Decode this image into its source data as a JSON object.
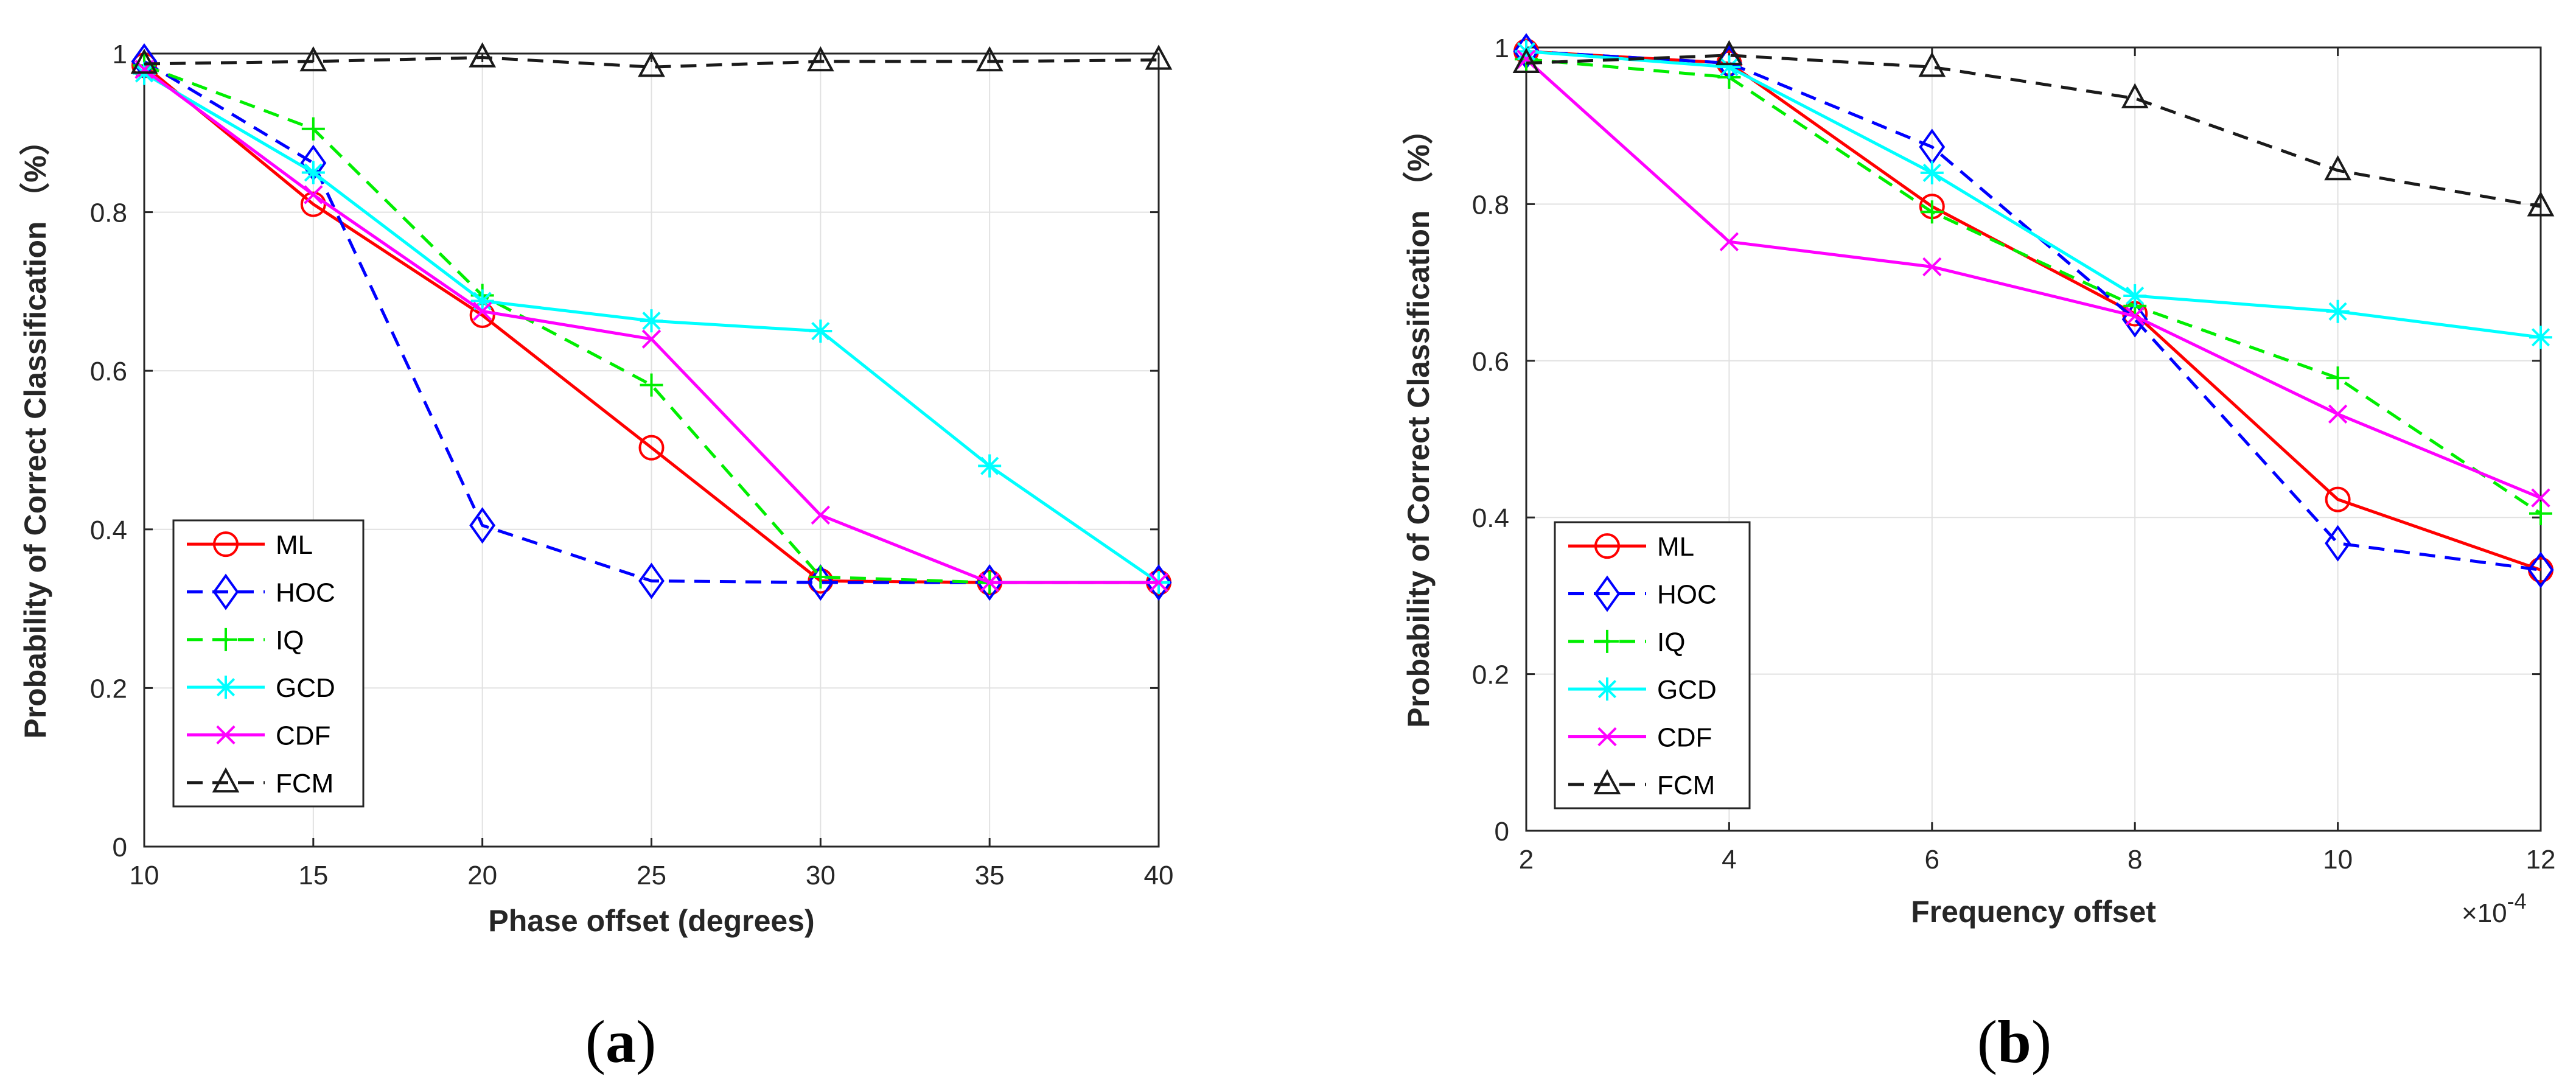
{
  "chart_data": [
    {
      "type": "line",
      "panel": "a",
      "caption": "a",
      "xlabel": "Phase offset (degrees)",
      "ylabel": "Probability of Correct Classification （%）",
      "x": [
        10,
        15,
        20,
        25,
        30,
        35,
        40
      ],
      "xticks": [
        "10",
        "15",
        "20",
        "25",
        "30",
        "35",
        "40"
      ],
      "xlim": [
        10,
        40
      ],
      "ylim": [
        0,
        1
      ],
      "yticks": [
        "0",
        "0.2",
        "0.4",
        "0.6",
        "0.8",
        "1"
      ],
      "grid": true,
      "legend_position": "lower-left",
      "series": [
        {
          "name": "ML",
          "color": "#ff0000",
          "dash": "solid",
          "marker": "circle",
          "values": [
            0.985,
            0.81,
            0.67,
            0.503,
            0.335,
            0.333,
            0.333
          ]
        },
        {
          "name": "HOC",
          "color": "#0000ff",
          "dash": "dashed",
          "marker": "diamond",
          "values": [
            0.99,
            0.862,
            0.405,
            0.335,
            0.333,
            0.333,
            0.333
          ]
        },
        {
          "name": "IQ",
          "color": "#00ee00",
          "dash": "dashed",
          "marker": "plus",
          "values": [
            0.985,
            0.905,
            0.695,
            0.582,
            0.34,
            0.333,
            0.333
          ]
        },
        {
          "name": "GCD",
          "color": "#00ffff",
          "dash": "solid",
          "marker": "asterisk",
          "values": [
            0.975,
            0.85,
            0.688,
            0.663,
            0.65,
            0.48,
            0.333
          ]
        },
        {
          "name": "CDF",
          "color": "#ff00ff",
          "dash": "solid",
          "marker": "cross",
          "values": [
            0.98,
            0.822,
            0.675,
            0.64,
            0.418,
            0.333,
            0.333
          ]
        },
        {
          "name": "FCM",
          "color": "#1a1a1a",
          "dash": "dashed",
          "marker": "triangle",
          "values": [
            0.987,
            0.99,
            0.995,
            0.983,
            0.99,
            0.99,
            0.992
          ]
        }
      ]
    },
    {
      "type": "line",
      "panel": "b",
      "caption": "b",
      "xlabel": "Frequency offset",
      "ylabel": "Probability of Correct Classification （%）",
      "x": [
        2,
        4,
        6,
        8,
        10,
        12
      ],
      "xticks": [
        "2",
        "4",
        "6",
        "8",
        "10",
        "12"
      ],
      "x_multiplier_label": "×10",
      "x_multiplier_exponent": "-4",
      "xlim": [
        2,
        12
      ],
      "ylim": [
        0,
        1
      ],
      "yticks": [
        "0",
        "0.2",
        "0.4",
        "0.6",
        "0.8",
        "1"
      ],
      "grid": true,
      "legend_position": "lower-left",
      "series": [
        {
          "name": "ML",
          "color": "#ff0000",
          "dash": "solid",
          "marker": "circle",
          "values": [
            0.995,
            0.98,
            0.797,
            0.66,
            0.423,
            0.333
          ]
        },
        {
          "name": "HOC",
          "color": "#0000ff",
          "dash": "dashed",
          "marker": "diamond",
          "values": [
            0.995,
            0.98,
            0.873,
            0.653,
            0.367,
            0.333
          ]
        },
        {
          "name": "IQ",
          "color": "#00ee00",
          "dash": "dashed",
          "marker": "plus",
          "values": [
            0.985,
            0.962,
            0.79,
            0.67,
            0.578,
            0.405
          ]
        },
        {
          "name": "GCD",
          "color": "#00ffff",
          "dash": "solid",
          "marker": "asterisk",
          "values": [
            0.995,
            0.975,
            0.84,
            0.683,
            0.663,
            0.63
          ]
        },
        {
          "name": "CDF",
          "color": "#ff00ff",
          "dash": "solid",
          "marker": "cross",
          "values": [
            0.985,
            0.752,
            0.72,
            0.657,
            0.532,
            0.425
          ]
        },
        {
          "name": "FCM",
          "color": "#1a1a1a",
          "dash": "dashed",
          "marker": "triangle",
          "values": [
            0.98,
            0.99,
            0.975,
            0.935,
            0.843,
            0.797
          ]
        }
      ]
    }
  ]
}
